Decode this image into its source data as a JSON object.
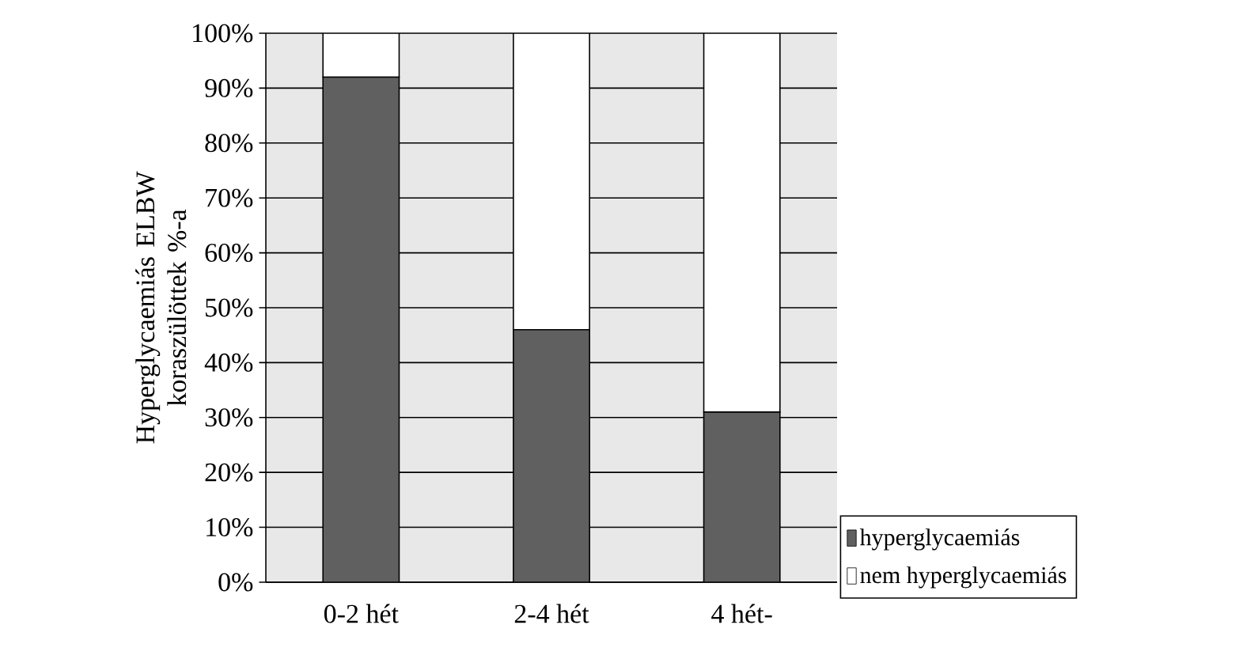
{
  "chart_data": {
    "type": "bar",
    "stacked": true,
    "ylabel": "Hyperglycaemiás ELBW koraszülöttek %-a",
    "categories": [
      "0-2 hét",
      "2-4 hét",
      "4 hét-"
    ],
    "series": [
      {
        "name": "hyperglycaemiás",
        "color": "#606060",
        "values": [
          92,
          46,
          31
        ]
      },
      {
        "name": "nem hyperglycaemiás",
        "color": "#ffffff",
        "values": [
          8,
          54,
          69
        ]
      }
    ],
    "ylim": [
      0,
      100
    ],
    "yticks": [
      {
        "value": 0,
        "label": "0%"
      },
      {
        "value": 10,
        "label": "10%"
      },
      {
        "value": 20,
        "label": "20%"
      },
      {
        "value": 30,
        "label": "30%"
      },
      {
        "value": 40,
        "label": "40%"
      },
      {
        "value": 50,
        "label": "50%"
      },
      {
        "value": 60,
        "label": "60%"
      },
      {
        "value": 70,
        "label": "70%"
      },
      {
        "value": 80,
        "label": "80%"
      },
      {
        "value": 90,
        "label": "90%"
      },
      {
        "value": 100,
        "label": "100%"
      }
    ],
    "grid": "y",
    "legend": "bottom right"
  }
}
